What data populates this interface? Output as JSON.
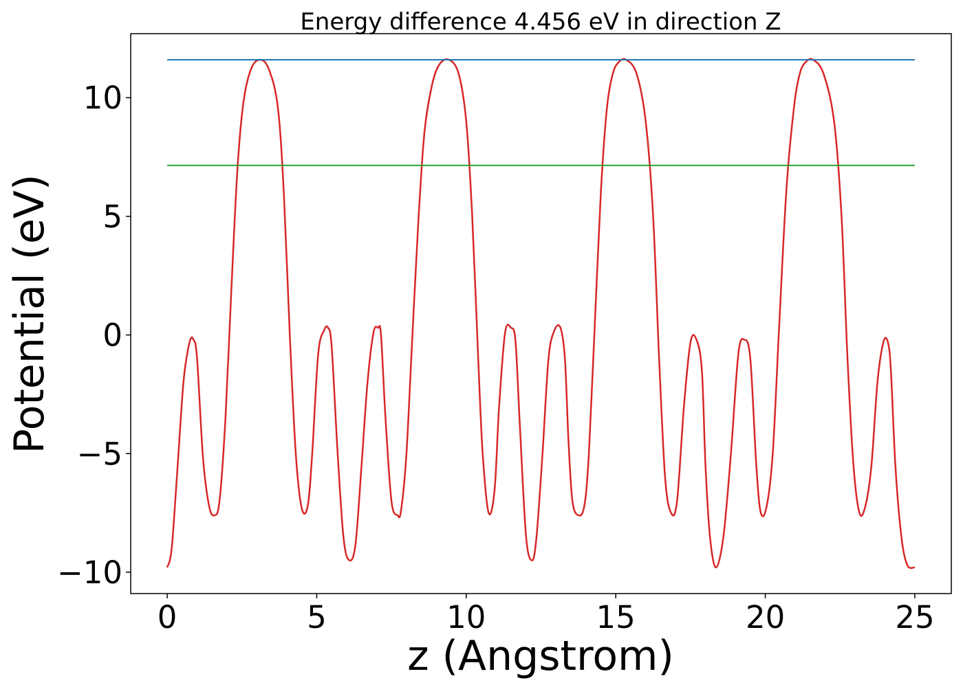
{
  "chart_data": {
    "type": "line",
    "title": "Energy difference 4.456 eV in direction Z",
    "xlabel": "z (Angstrom)",
    "ylabel": "Potential (eV)",
    "xlim": [
      -1.22,
      26.22
    ],
    "ylim": [
      -10.9,
      12.7
    ],
    "grid": false,
    "legend": "none",
    "x_ticks": [
      0,
      5,
      10,
      15,
      20,
      25
    ],
    "x_tick_labels": [
      "0",
      "5",
      "10",
      "15",
      "20",
      "25"
    ],
    "y_ticks": [
      -10,
      -5,
      0,
      5,
      10
    ],
    "y_tick_labels": [
      "−10",
      "−5",
      "0",
      "5",
      "10"
    ],
    "series": [
      {
        "color": "#d62728",
        "x": [
          0,
          0.15,
          0.35,
          0.55,
          0.75,
          0.88,
          1.0,
          1.2,
          1.4,
          1.58,
          1.75,
          1.95,
          2.15,
          2.35,
          2.55,
          2.8,
          3.1,
          3.4,
          3.7,
          3.9,
          4.1,
          4.3,
          4.5,
          4.7,
          4.85,
          5.05,
          5.25,
          5.38,
          5.5,
          5.7,
          5.9,
          6.1,
          6.3,
          6.5,
          6.7,
          6.9,
          7.05,
          7.15,
          7.3,
          7.5,
          7.7,
          7.82,
          8.0,
          8.2,
          8.4,
          8.6,
          8.85,
          9.1,
          9.43,
          9.75,
          10.0,
          10.2,
          10.4,
          10.55,
          10.75,
          10.95,
          11.1,
          11.3,
          11.5,
          11.65,
          11.8,
          12.0,
          12.2,
          12.35,
          12.55,
          12.75,
          12.95,
          13.15,
          13.3,
          13.42,
          13.55,
          13.75,
          13.95,
          14.1,
          14.3,
          14.5,
          14.7,
          14.9,
          15.1,
          15.35,
          15.7,
          16.0,
          16.25,
          16.45,
          16.65,
          16.85,
          17.05,
          17.28,
          17.5,
          17.7,
          17.88,
          18.0,
          18.15,
          18.35,
          18.6,
          18.85,
          19.1,
          19.3,
          19.5,
          19.7,
          19.85,
          20.05,
          20.25,
          20.45,
          20.7,
          20.95,
          21.15,
          21.35,
          21.6,
          21.95,
          22.3,
          22.55,
          22.75,
          22.95,
          23.15,
          23.35,
          23.55,
          23.75,
          23.95,
          24.1,
          24.2,
          24.35,
          24.55,
          24.75,
          25.0
        ],
        "y": [
          -9.8,
          -9.0,
          -5.5,
          -1.9,
          -0.3,
          -0.2,
          -1.0,
          -5.2,
          -7.2,
          -7.6,
          -7.0,
          -3.5,
          2.0,
          7.0,
          9.8,
          11.2,
          11.6,
          11.2,
          9.6,
          6.0,
          0.0,
          -5.0,
          -7.3,
          -7.2,
          -5.0,
          -0.8,
          0.2,
          0.3,
          -0.5,
          -5.0,
          -8.6,
          -9.5,
          -8.8,
          -5.5,
          -2.0,
          0.1,
          0.3,
          0.0,
          -3.5,
          -7.0,
          -7.6,
          -7.4,
          -5.0,
          0.0,
          4.8,
          8.5,
          10.5,
          11.4,
          11.6,
          11.0,
          9.0,
          5.0,
          -1.0,
          -5.0,
          -7.5,
          -6.5,
          -3.0,
          0.1,
          0.3,
          -0.3,
          -4.0,
          -8.5,
          -9.5,
          -8.5,
          -5.0,
          -1.0,
          0.2,
          0.3,
          -1.0,
          -4.5,
          -7.0,
          -7.6,
          -7.2,
          -5.0,
          0.5,
          6.0,
          9.5,
          11.0,
          11.5,
          11.6,
          11.0,
          9.0,
          5.0,
          -1.0,
          -6.0,
          -7.5,
          -7.0,
          -3.0,
          -0.3,
          -0.2,
          -1.5,
          -5.5,
          -8.5,
          -9.8,
          -8.5,
          -5.0,
          -0.8,
          -0.2,
          -1.0,
          -5.5,
          -7.5,
          -7.2,
          -5.0,
          0.0,
          6.0,
          9.5,
          11.0,
          11.5,
          11.6,
          11.0,
          9.0,
          5.0,
          -1.0,
          -5.5,
          -7.5,
          -7.2,
          -5.5,
          -2.0,
          -0.3,
          -0.3,
          -1.5,
          -5.5,
          -8.5,
          -9.7,
          -9.8
        ]
      },
      {
        "color": "#1f77b4",
        "x": [
          0,
          25
        ],
        "y": [
          11.6,
          11.6
        ]
      },
      {
        "color": "#2ca02c",
        "x": [
          0,
          25
        ],
        "y": [
          7.15,
          7.15
        ]
      }
    ]
  }
}
